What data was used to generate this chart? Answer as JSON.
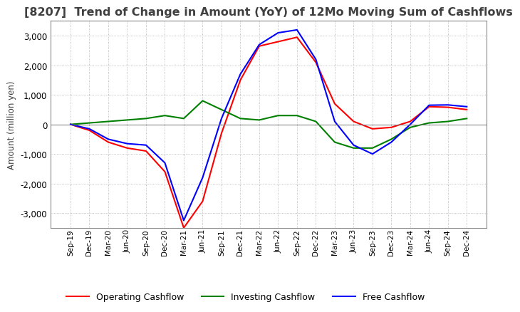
{
  "title": "[8207]  Trend of Change in Amount (YoY) of 12Mo Moving Sum of Cashflows",
  "ylabel": "Amount (million yen)",
  "ylim": [
    -3500,
    3500
  ],
  "yticks": [
    -3000,
    -2000,
    -1000,
    0,
    1000,
    2000,
    3000
  ],
  "x_labels": [
    "Sep-19",
    "Dec-19",
    "Mar-20",
    "Jun-20",
    "Sep-20",
    "Dec-20",
    "Mar-21",
    "Jun-21",
    "Sep-21",
    "Dec-21",
    "Mar-22",
    "Jun-22",
    "Sep-22",
    "Dec-22",
    "Mar-23",
    "Jun-23",
    "Sep-23",
    "Dec-23",
    "Mar-24",
    "Jun-24",
    "Sep-24",
    "Dec-24"
  ],
  "operating": [
    0,
    -200,
    -600,
    -800,
    -900,
    -1600,
    -3500,
    -2600,
    -300,
    1500,
    2650,
    2800,
    2950,
    2100,
    700,
    100,
    -150,
    -100,
    100,
    600,
    580,
    500
  ],
  "investing": [
    0,
    50,
    100,
    150,
    200,
    300,
    200,
    800,
    500,
    200,
    150,
    300,
    300,
    100,
    -600,
    -800,
    -800,
    -500,
    -100,
    50,
    100,
    200
  ],
  "free": [
    0,
    -150,
    -500,
    -650,
    -700,
    -1300,
    -3250,
    -1800,
    200,
    1700,
    2700,
    3100,
    3200,
    2200,
    100,
    -700,
    -1000,
    -600,
    0,
    650,
    660,
    600
  ],
  "op_color": "#ff0000",
  "inv_color": "#008000",
  "free_color": "#0000ff",
  "bg_color": "#ffffff",
  "grid_color": "#aaaaaa",
  "title_color": "#404040",
  "title_fontsize": 11.5
}
